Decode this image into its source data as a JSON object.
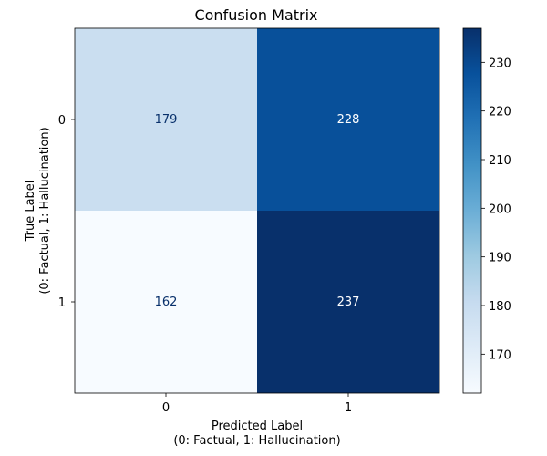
{
  "chart_data": {
    "type": "heatmap",
    "title": "Confusion Matrix",
    "xlabel_lines": [
      "Predicted Label",
      "(0: Factual, 1: Hallucination)"
    ],
    "ylabel_lines": [
      "True Label",
      "(0: Factual, 1: Hallucination)"
    ],
    "x_categories": [
      "0",
      "1"
    ],
    "y_categories": [
      "0",
      "1"
    ],
    "values": [
      [
        179,
        228
      ],
      [
        162,
        237
      ]
    ],
    "colorscale": "Blues",
    "color_range": [
      162,
      237
    ],
    "colorbar_ticks": [
      170,
      180,
      190,
      200,
      210,
      220,
      230
    ]
  }
}
